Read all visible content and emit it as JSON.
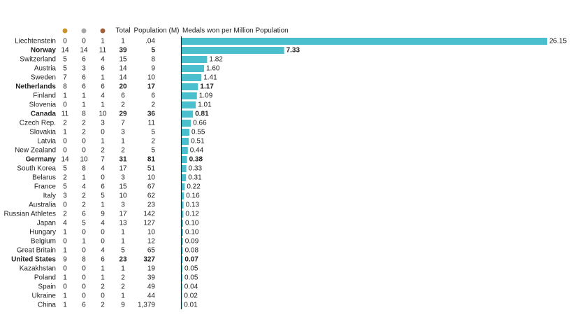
{
  "chart_data": {
    "type": "bar",
    "orientation": "horizontal",
    "title": "Medals won per Million Population",
    "categories": [
      "Liechtenstein",
      "Norway",
      "Switzerland",
      "Austria",
      "Sweden",
      "Netherlands",
      "Finland",
      "Slovenia",
      "Canada",
      "Czech Rep.",
      "Slovakia",
      "Latvia",
      "New Zealand",
      "Germany",
      "South Korea",
      "Belarus",
      "France",
      "Italy",
      "Australia",
      "Russian Athletes",
      "Japan",
      "Hungary",
      "Belgium",
      "Great Britain",
      "United States",
      "Kazakhstan",
      "Poland",
      "Spain",
      "Ukraine",
      "China"
    ],
    "values": [
      26.15,
      7.33,
      1.82,
      1.6,
      1.41,
      1.17,
      1.09,
      1.01,
      0.81,
      0.66,
      0.55,
      0.51,
      0.44,
      0.38,
      0.33,
      0.31,
      0.22,
      0.16,
      0.13,
      0.12,
      0.1,
      0.1,
      0.09,
      0.08,
      0.07,
      0.05,
      0.05,
      0.04,
      0.02,
      0.01
    ],
    "value_labels": [
      "26.15",
      "7.33",
      "1.82",
      "1.60",
      "1.41",
      "1.17",
      "1.09",
      "1.01",
      "0.81",
      "0.66",
      "0.55",
      "0.51",
      "0.44",
      "0.38",
      "0.33",
      "0.31",
      "0.22",
      "0.16",
      "0.13",
      "0.12",
      "0.10",
      "0.10",
      "0.09",
      "0.08",
      "0.07",
      "0.05",
      "0.05",
      "0.04",
      "0.02",
      "0.01"
    ],
    "xlim": [
      0,
      26.15
    ],
    "color": "#4bbfcd",
    "bold": [
      false,
      true,
      false,
      false,
      false,
      true,
      false,
      false,
      true,
      false,
      false,
      false,
      false,
      true,
      false,
      false,
      false,
      false,
      false,
      false,
      false,
      false,
      false,
      false,
      true,
      false,
      false,
      false,
      false,
      false
    ],
    "medal_columns": [
      {
        "color": "#c9962c",
        "values": [
          0,
          14,
          5,
          5,
          7,
          8,
          1,
          0,
          11,
          2,
          1,
          0,
          0,
          14,
          5,
          2,
          5,
          3,
          0,
          2,
          4,
          1,
          0,
          1,
          9,
          0,
          1,
          0,
          1,
          1
        ]
      },
      {
        "color": "#a6a6a6",
        "values": [
          0,
          14,
          6,
          3,
          6,
          6,
          1,
          1,
          8,
          2,
          2,
          0,
          0,
          10,
          8,
          1,
          4,
          2,
          2,
          6,
          5,
          0,
          1,
          0,
          8,
          0,
          0,
          0,
          0,
          6
        ]
      },
      {
        "color": "#a0603a",
        "values": [
          1,
          11,
          4,
          6,
          1,
          6,
          4,
          1,
          10,
          3,
          0,
          1,
          2,
          7,
          4,
          0,
          6,
          5,
          1,
          9,
          4,
          0,
          0,
          4,
          6,
          1,
          1,
          2,
          0,
          2
        ]
      }
    ],
    "total": {
      "name": "Total",
      "values": [
        1,
        39,
        15,
        14,
        14,
        20,
        6,
        2,
        29,
        7,
        3,
        1,
        2,
        31,
        17,
        3,
        15,
        10,
        3,
        17,
        13,
        1,
        1,
        5,
        23,
        1,
        2,
        2,
        1,
        9
      ]
    },
    "population": {
      "name": "Population (M)",
      "values": [
        0.04,
        5,
        8,
        9,
        10,
        17,
        6,
        2,
        36,
        11,
        5,
        2,
        5,
        81,
        51,
        10,
        67,
        62,
        23,
        142,
        127,
        10,
        12,
        65,
        327,
        19,
        39,
        49,
        44,
        1379
      ],
      "value_labels": [
        ".04",
        "5",
        "8",
        "9",
        "10",
        "17",
        "6",
        "2",
        "36",
        "11",
        "5",
        "2",
        "5",
        "81",
        "51",
        "10",
        "67",
        "62",
        "23",
        "142",
        "127",
        "10",
        "12",
        "65",
        "327",
        "19",
        "39",
        "49",
        "44",
        "1,379"
      ]
    }
  }
}
